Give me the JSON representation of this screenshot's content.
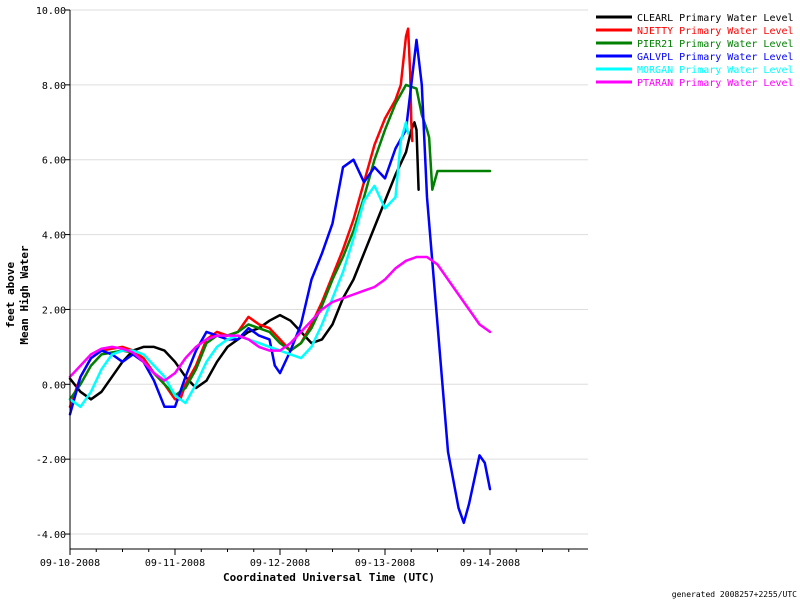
{
  "chart_data": {
    "type": "line",
    "xlabel": "Coordinated Universal Time (UTC)",
    "ylabel_line1": "feet above",
    "ylabel_line2": "Mean High Water",
    "footer": "generated 2008257+2255/UTC",
    "x_unit": "days since 09-10-2008 00:00 UTC",
    "xlim": [
      0,
      5
    ],
    "ylim": [
      -4.4,
      10
    ],
    "x_ticks": [
      {
        "x": 0,
        "label": "09-10-2008"
      },
      {
        "x": 1,
        "label": "09-11-2008"
      },
      {
        "x": 2,
        "label": "09-12-2008"
      },
      {
        "x": 3,
        "label": "09-13-2008"
      },
      {
        "x": 4,
        "label": "09-14-2008"
      }
    ],
    "y_ticks": [
      {
        "y": -4,
        "label": "-4.00"
      },
      {
        "y": -2,
        "label": "-2.00"
      },
      {
        "y": 0,
        "label": "0.00"
      },
      {
        "y": 2,
        "label": "2.00"
      },
      {
        "y": 4,
        "label": "4.00"
      },
      {
        "y": 6,
        "label": "6.00"
      },
      {
        "y": 8,
        "label": "8.00"
      },
      {
        "y": 10,
        "label": "10.00"
      }
    ],
    "legend_position": "top-right",
    "series": [
      {
        "name": "CLEARL Primary Water Level",
        "color": "#000000",
        "points": [
          [
            0,
            0.15
          ],
          [
            0.1,
            -0.2
          ],
          [
            0.2,
            -0.4
          ],
          [
            0.3,
            -0.2
          ],
          [
            0.4,
            0.2
          ],
          [
            0.5,
            0.6
          ],
          [
            0.6,
            0.9
          ],
          [
            0.7,
            1.0
          ],
          [
            0.8,
            1.0
          ],
          [
            0.9,
            0.9
          ],
          [
            1.0,
            0.6
          ],
          [
            1.1,
            0.2
          ],
          [
            1.2,
            -0.1
          ],
          [
            1.3,
            0.1
          ],
          [
            1.4,
            0.6
          ],
          [
            1.5,
            1.0
          ],
          [
            1.6,
            1.2
          ],
          [
            1.7,
            1.4
          ],
          [
            1.8,
            1.5
          ],
          [
            1.9,
            1.7
          ],
          [
            2.0,
            1.85
          ],
          [
            2.1,
            1.7
          ],
          [
            2.2,
            1.4
          ],
          [
            2.3,
            1.1
          ],
          [
            2.4,
            1.2
          ],
          [
            2.5,
            1.6
          ],
          [
            2.6,
            2.3
          ],
          [
            2.7,
            2.8
          ],
          [
            2.8,
            3.5
          ],
          [
            2.9,
            4.2
          ],
          [
            3.0,
            4.9
          ],
          [
            3.1,
            5.6
          ],
          [
            3.2,
            6.2
          ],
          [
            3.25,
            6.8
          ],
          [
            3.28,
            7.0
          ],
          [
            3.3,
            6.8
          ],
          [
            3.32,
            5.2
          ]
        ]
      },
      {
        "name": "NJETTY Primary Water Level",
        "color": "#ff0000",
        "points": [
          [
            0,
            -0.6
          ],
          [
            0.1,
            0.2
          ],
          [
            0.2,
            0.7
          ],
          [
            0.3,
            0.9
          ],
          [
            0.4,
            0.95
          ],
          [
            0.5,
            1.0
          ],
          [
            0.6,
            0.9
          ],
          [
            0.7,
            0.7
          ],
          [
            0.8,
            0.3
          ],
          [
            0.9,
            0.0
          ],
          [
            1.0,
            -0.4
          ],
          [
            1.05,
            -0.4
          ],
          [
            1.1,
            0.0
          ],
          [
            1.2,
            0.5
          ],
          [
            1.3,
            1.2
          ],
          [
            1.4,
            1.4
          ],
          [
            1.5,
            1.3
          ],
          [
            1.6,
            1.4
          ],
          [
            1.7,
            1.8
          ],
          [
            1.8,
            1.6
          ],
          [
            1.9,
            1.5
          ],
          [
            2.0,
            1.2
          ],
          [
            2.1,
            0.9
          ],
          [
            2.2,
            1.1
          ],
          [
            2.3,
            1.6
          ],
          [
            2.4,
            2.2
          ],
          [
            2.5,
            2.9
          ],
          [
            2.6,
            3.6
          ],
          [
            2.7,
            4.4
          ],
          [
            2.8,
            5.4
          ],
          [
            2.9,
            6.4
          ],
          [
            3.0,
            7.1
          ],
          [
            3.1,
            7.6
          ],
          [
            3.15,
            8.0
          ],
          [
            3.2,
            9.3
          ],
          [
            3.22,
            9.5
          ],
          [
            3.24,
            8.3
          ],
          [
            3.25,
            7.0
          ],
          [
            3.26,
            6.5
          ]
        ]
      },
      {
        "name": "PIER21 Primary Water Level",
        "color": "#008000",
        "points": [
          [
            0,
            -0.4
          ],
          [
            0.1,
            0.0
          ],
          [
            0.2,
            0.5
          ],
          [
            0.3,
            0.8
          ],
          [
            0.4,
            0.85
          ],
          [
            0.5,
            0.9
          ],
          [
            0.6,
            0.85
          ],
          [
            0.7,
            0.6
          ],
          [
            0.8,
            0.3
          ],
          [
            0.9,
            0.0
          ],
          [
            1.0,
            -0.3
          ],
          [
            1.1,
            -0.1
          ],
          [
            1.2,
            0.4
          ],
          [
            1.3,
            1.1
          ],
          [
            1.4,
            1.3
          ],
          [
            1.5,
            1.3
          ],
          [
            1.6,
            1.4
          ],
          [
            1.7,
            1.6
          ],
          [
            1.8,
            1.5
          ],
          [
            1.9,
            1.4
          ],
          [
            2.0,
            1.1
          ],
          [
            2.1,
            0.9
          ],
          [
            2.2,
            1.1
          ],
          [
            2.3,
            1.5
          ],
          [
            2.4,
            2.1
          ],
          [
            2.5,
            2.8
          ],
          [
            2.6,
            3.4
          ],
          [
            2.7,
            4.1
          ],
          [
            2.8,
            5.0
          ],
          [
            2.9,
            6.0
          ],
          [
            3.0,
            6.8
          ],
          [
            3.1,
            7.5
          ],
          [
            3.2,
            8.0
          ],
          [
            3.3,
            7.9
          ],
          [
            3.35,
            7.2
          ],
          [
            3.4,
            6.8
          ],
          [
            3.42,
            6.6
          ],
          [
            3.45,
            5.2
          ],
          [
            3.5,
            5.7
          ],
          [
            4.0,
            5.7
          ]
        ]
      },
      {
        "name": "GALVPL Primary Water Level",
        "color": "#0000ff",
        "points": [
          [
            0,
            -0.8
          ],
          [
            0.1,
            0.2
          ],
          [
            0.2,
            0.7
          ],
          [
            0.3,
            0.9
          ],
          [
            0.4,
            0.8
          ],
          [
            0.5,
            0.6
          ],
          [
            0.6,
            0.8
          ],
          [
            0.7,
            0.6
          ],
          [
            0.8,
            0.1
          ],
          [
            0.9,
            -0.6
          ],
          [
            1.0,
            -0.6
          ],
          [
            1.1,
            0.2
          ],
          [
            1.2,
            0.9
          ],
          [
            1.3,
            1.4
          ],
          [
            1.4,
            1.3
          ],
          [
            1.5,
            1.2
          ],
          [
            1.6,
            1.2
          ],
          [
            1.7,
            1.5
          ],
          [
            1.8,
            1.3
          ],
          [
            1.9,
            1.2
          ],
          [
            1.95,
            0.5
          ],
          [
            2.0,
            0.3
          ],
          [
            2.1,
            0.9
          ],
          [
            2.2,
            1.6
          ],
          [
            2.3,
            2.8
          ],
          [
            2.4,
            3.5
          ],
          [
            2.5,
            4.3
          ],
          [
            2.6,
            5.8
          ],
          [
            2.7,
            6.0
          ],
          [
            2.8,
            5.4
          ],
          [
            2.9,
            5.8
          ],
          [
            3.0,
            5.5
          ],
          [
            3.1,
            6.3
          ],
          [
            3.2,
            6.8
          ],
          [
            3.3,
            9.2
          ],
          [
            3.35,
            8.0
          ],
          [
            3.4,
            5.0
          ],
          [
            3.5,
            1.6
          ],
          [
            3.6,
            -1.8
          ],
          [
            3.7,
            -3.3
          ],
          [
            3.75,
            -3.7
          ],
          [
            3.8,
            -3.2
          ],
          [
            3.9,
            -1.9
          ],
          [
            3.95,
            -2.1
          ],
          [
            4.0,
            -2.8
          ]
        ]
      },
      {
        "name": "MORGAN Primary Water Level",
        "color": "#00ffff",
        "points": [
          [
            0,
            -0.4
          ],
          [
            0.1,
            -0.6
          ],
          [
            0.2,
            -0.2
          ],
          [
            0.3,
            0.4
          ],
          [
            0.4,
            0.8
          ],
          [
            0.5,
            0.9
          ],
          [
            0.6,
            0.9
          ],
          [
            0.7,
            0.8
          ],
          [
            0.8,
            0.5
          ],
          [
            0.9,
            0.2
          ],
          [
            1.0,
            -0.3
          ],
          [
            1.1,
            -0.5
          ],
          [
            1.2,
            0.0
          ],
          [
            1.3,
            0.6
          ],
          [
            1.4,
            1.0
          ],
          [
            1.5,
            1.2
          ],
          [
            1.6,
            1.3
          ],
          [
            1.7,
            1.2
          ],
          [
            1.8,
            1.1
          ],
          [
            1.9,
            1.0
          ],
          [
            2.0,
            0.9
          ],
          [
            2.1,
            0.8
          ],
          [
            2.2,
            0.7
          ],
          [
            2.3,
            1.0
          ],
          [
            2.4,
            1.6
          ],
          [
            2.5,
            2.3
          ],
          [
            2.6,
            3.0
          ],
          [
            2.7,
            3.9
          ],
          [
            2.8,
            4.9
          ],
          [
            2.9,
            5.3
          ],
          [
            3.0,
            4.7
          ],
          [
            3.1,
            5.0
          ],
          [
            3.15,
            6.5
          ],
          [
            3.2,
            7.0
          ],
          [
            3.22,
            6.7
          ]
        ]
      },
      {
        "name": "PTARAN Primary Water Level",
        "color": "#ff00ff",
        "points": [
          [
            0,
            0.2
          ],
          [
            0.1,
            0.5
          ],
          [
            0.2,
            0.8
          ],
          [
            0.3,
            0.95
          ],
          [
            0.4,
            1.0
          ],
          [
            0.5,
            0.95
          ],
          [
            0.6,
            0.85
          ],
          [
            0.7,
            0.6
          ],
          [
            0.8,
            0.3
          ],
          [
            0.9,
            0.1
          ],
          [
            1.0,
            0.3
          ],
          [
            1.1,
            0.7
          ],
          [
            1.2,
            1.0
          ],
          [
            1.3,
            1.2
          ],
          [
            1.4,
            1.3
          ],
          [
            1.5,
            1.3
          ],
          [
            1.6,
            1.3
          ],
          [
            1.7,
            1.2
          ],
          [
            1.8,
            1.0
          ],
          [
            1.9,
            0.9
          ],
          [
            2.0,
            0.9
          ],
          [
            2.1,
            1.1
          ],
          [
            2.2,
            1.4
          ],
          [
            2.3,
            1.7
          ],
          [
            2.4,
            2.0
          ],
          [
            2.5,
            2.2
          ],
          [
            2.6,
            2.3
          ],
          [
            2.7,
            2.4
          ],
          [
            2.8,
            2.5
          ],
          [
            2.9,
            2.6
          ],
          [
            3.0,
            2.8
          ],
          [
            3.1,
            3.1
          ],
          [
            3.2,
            3.3
          ],
          [
            3.3,
            3.4
          ],
          [
            3.4,
            3.4
          ],
          [
            3.5,
            3.2
          ],
          [
            3.6,
            2.8
          ],
          [
            3.7,
            2.4
          ],
          [
            3.8,
            2.0
          ],
          [
            3.9,
            1.6
          ],
          [
            4.0,
            1.4
          ]
        ]
      }
    ]
  }
}
